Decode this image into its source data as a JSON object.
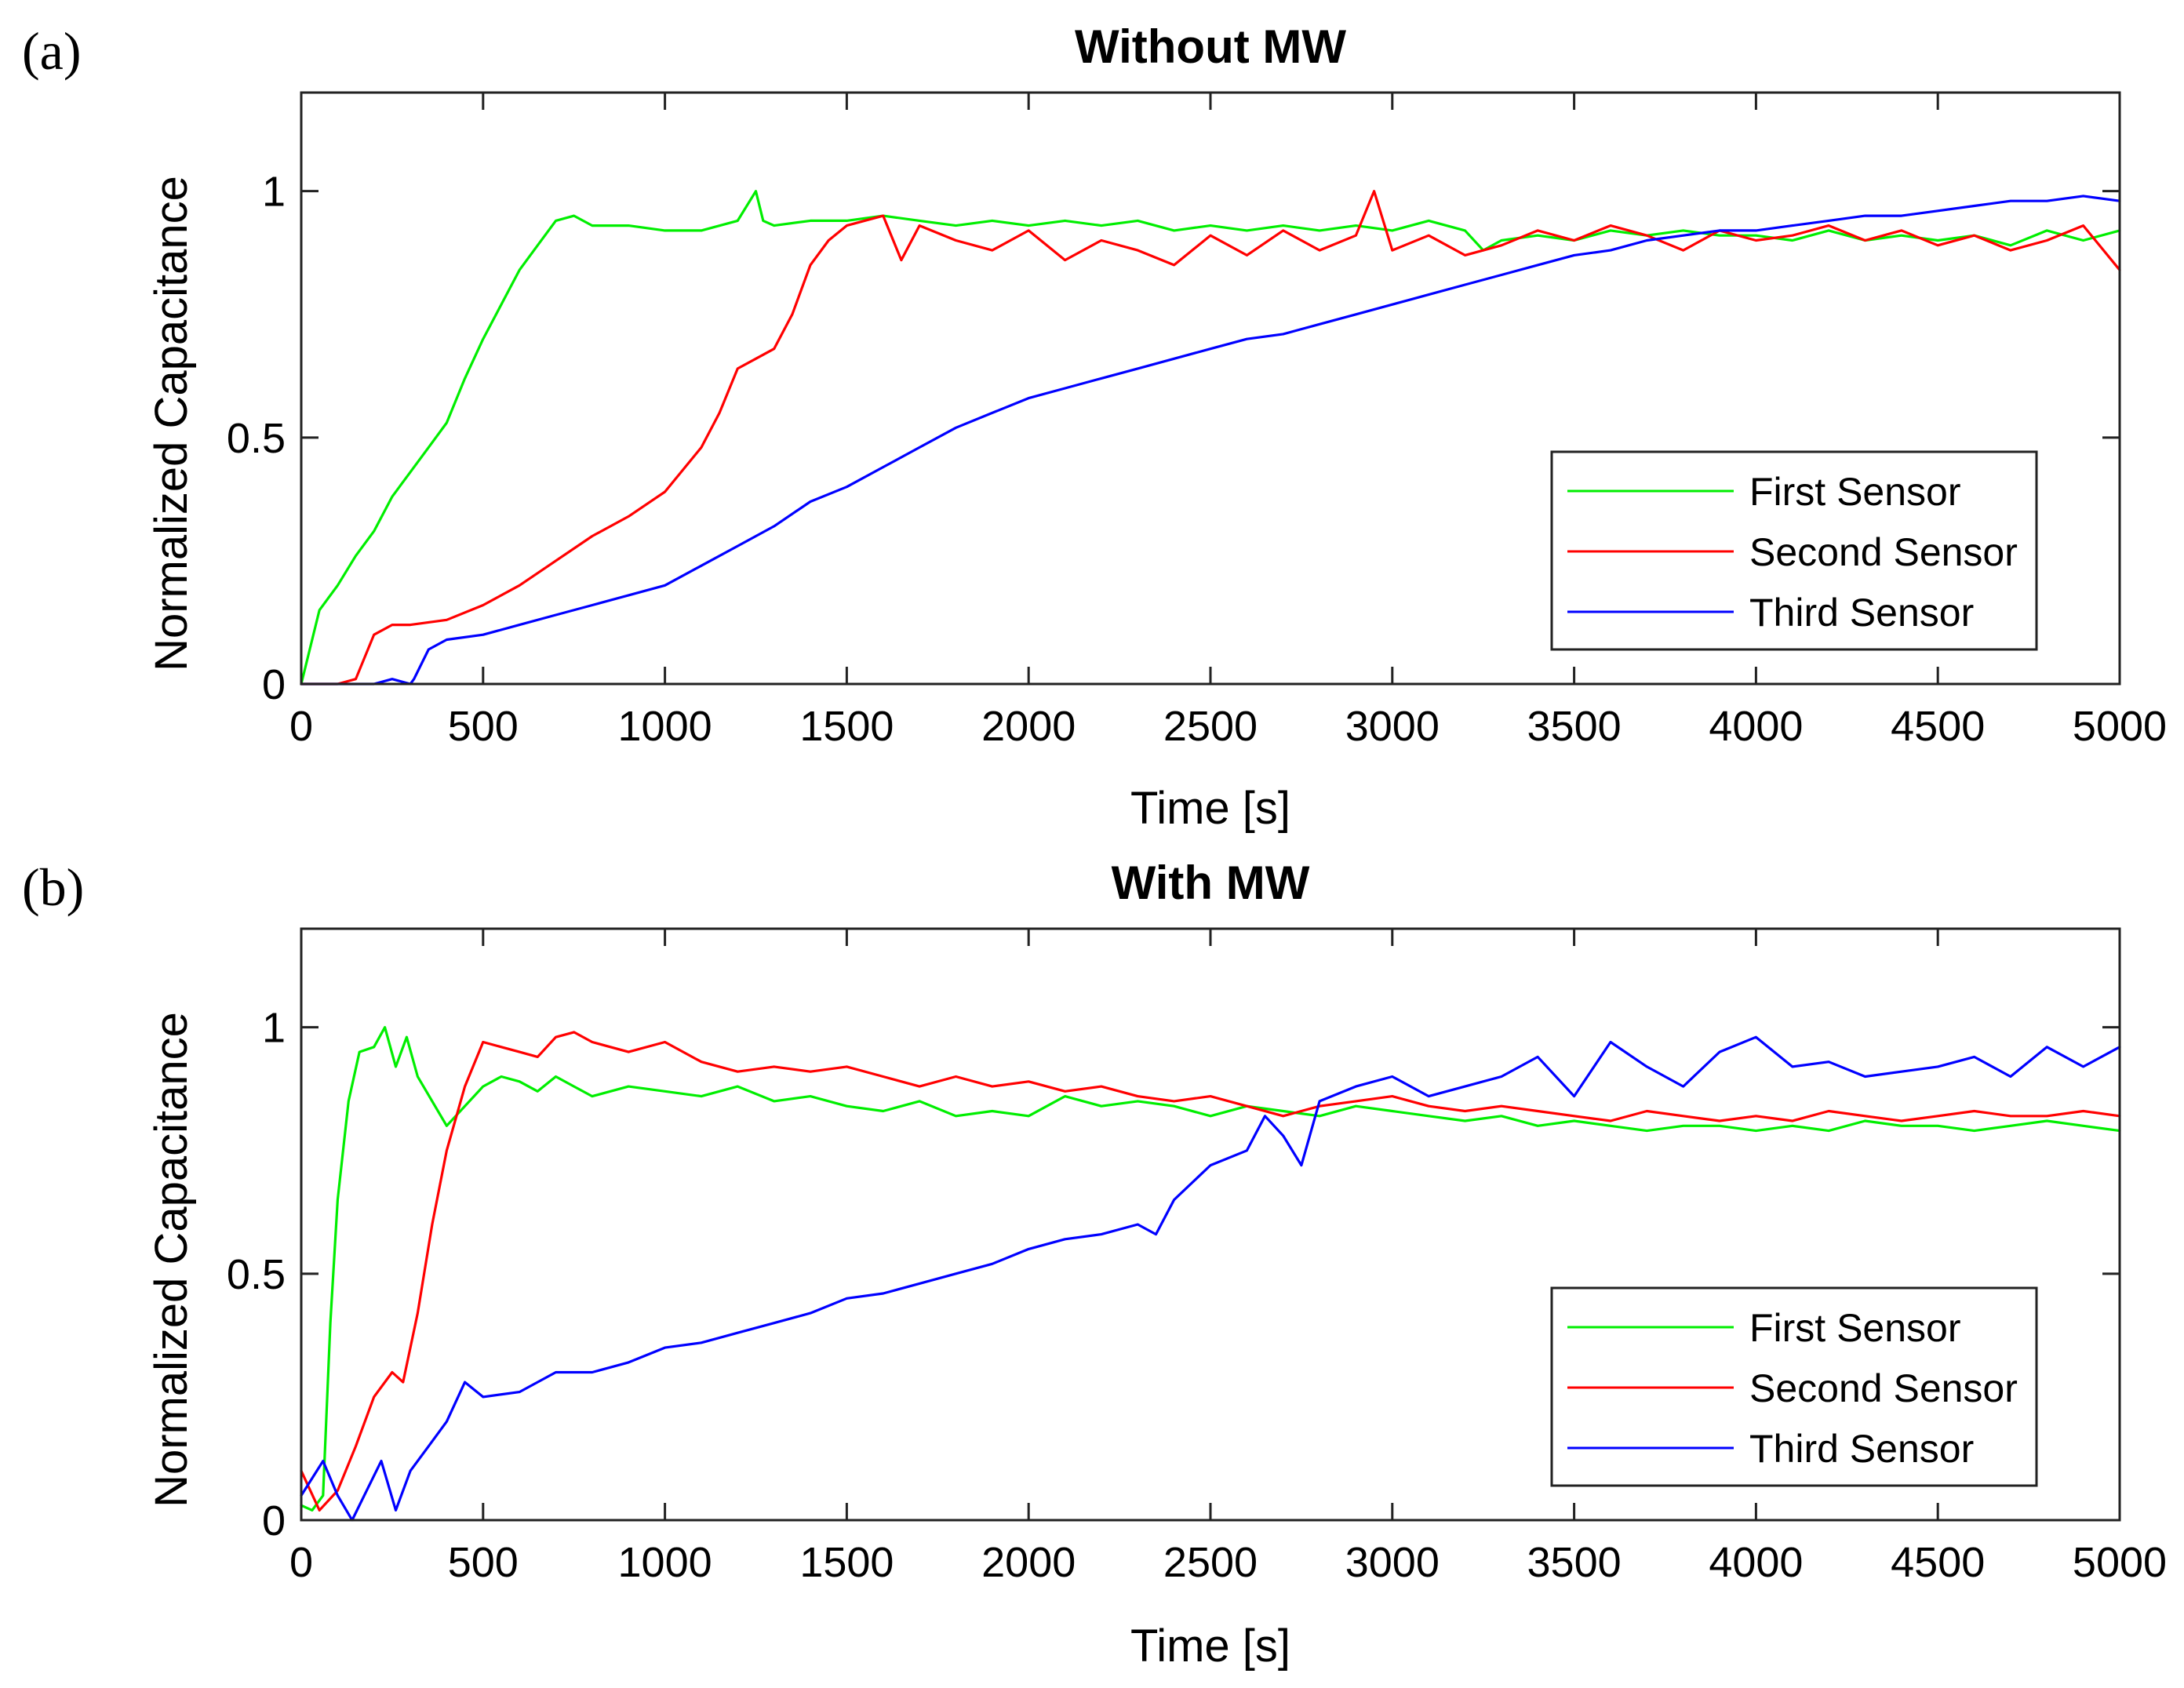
{
  "chart_data": [
    {
      "type": "line",
      "panel_label": "(a)",
      "title": "Without MW",
      "xlabel": "Time [s]",
      "ylabel": "Normalized Capacitance",
      "xlim": [
        0,
        5000
      ],
      "ylim": [
        0,
        1.2
      ],
      "xticks": [
        0,
        500,
        1000,
        1500,
        2000,
        2500,
        3000,
        3500,
        4000,
        4500,
        5000
      ],
      "yticks": [
        0,
        0.5,
        1
      ],
      "ytick_labels": [
        "0",
        "0.5",
        "1"
      ],
      "grid": false,
      "legend_position": "lower-right",
      "series": [
        {
          "name": "First Sensor",
          "color": "#00ee00",
          "x": [
            0,
            50,
            100,
            150,
            200,
            250,
            300,
            350,
            400,
            450,
            500,
            550,
            600,
            650,
            700,
            750,
            800,
            900,
            1000,
            1100,
            1200,
            1250,
            1270,
            1300,
            1400,
            1500,
            1600,
            1700,
            1800,
            1900,
            2000,
            2100,
            2200,
            2300,
            2400,
            2500,
            2600,
            2700,
            2800,
            2900,
            3000,
            3100,
            3200,
            3250,
            3300,
            3400,
            3500,
            3600,
            3700,
            3800,
            3900,
            4000,
            4100,
            4200,
            4300,
            4400,
            4500,
            4600,
            4700,
            4800,
            4900,
            5000
          ],
          "y": [
            0,
            0.15,
            0.2,
            0.26,
            0.31,
            0.38,
            0.43,
            0.48,
            0.53,
            0.62,
            0.7,
            0.77,
            0.84,
            0.89,
            0.94,
            0.95,
            0.93,
            0.93,
            0.92,
            0.92,
            0.94,
            1.0,
            0.94,
            0.93,
            0.94,
            0.94,
            0.95,
            0.94,
            0.93,
            0.94,
            0.93,
            0.94,
            0.93,
            0.94,
            0.92,
            0.93,
            0.92,
            0.93,
            0.92,
            0.93,
            0.92,
            0.94,
            0.92,
            0.88,
            0.9,
            0.91,
            0.9,
            0.92,
            0.91,
            0.92,
            0.91,
            0.91,
            0.9,
            0.92,
            0.9,
            0.91,
            0.9,
            0.91,
            0.89,
            0.92,
            0.9,
            0.92
          ]
        },
        {
          "name": "Second Sensor",
          "color": "#ff0000",
          "x": [
            0,
            100,
            150,
            200,
            250,
            300,
            400,
            500,
            600,
            700,
            800,
            900,
            1000,
            1100,
            1150,
            1200,
            1250,
            1300,
            1350,
            1400,
            1450,
            1500,
            1600,
            1650,
            1700,
            1800,
            1900,
            2000,
            2100,
            2200,
            2300,
            2400,
            2500,
            2600,
            2700,
            2800,
            2900,
            2950,
            3000,
            3100,
            3200,
            3300,
            3400,
            3500,
            3600,
            3700,
            3800,
            3900,
            4000,
            4100,
            4200,
            4300,
            4400,
            4500,
            4600,
            4700,
            4800,
            4900,
            5000
          ],
          "y": [
            0,
            0,
            0.01,
            0.1,
            0.12,
            0.12,
            0.13,
            0.16,
            0.2,
            0.25,
            0.3,
            0.34,
            0.39,
            0.48,
            0.55,
            0.64,
            0.66,
            0.68,
            0.75,
            0.85,
            0.9,
            0.93,
            0.95,
            0.86,
            0.93,
            0.9,
            0.88,
            0.92,
            0.86,
            0.9,
            0.88,
            0.85,
            0.91,
            0.87,
            0.92,
            0.88,
            0.91,
            1.0,
            0.88,
            0.91,
            0.87,
            0.89,
            0.92,
            0.9,
            0.93,
            0.91,
            0.88,
            0.92,
            0.9,
            0.91,
            0.93,
            0.9,
            0.92,
            0.89,
            0.91,
            0.88,
            0.9,
            0.93,
            0.84
          ]
        },
        {
          "name": "Third Sensor",
          "color": "#0000ff",
          "x": [
            0,
            200,
            250,
            300,
            310,
            350,
            400,
            500,
            600,
            700,
            800,
            900,
            1000,
            1100,
            1200,
            1300,
            1400,
            1500,
            1600,
            1700,
            1800,
            1900,
            2000,
            2100,
            2200,
            2300,
            2400,
            2500,
            2600,
            2700,
            2800,
            2900,
            3000,
            3100,
            3200,
            3300,
            3400,
            3500,
            3600,
            3700,
            3800,
            3900,
            4000,
            4100,
            4200,
            4300,
            4400,
            4500,
            4600,
            4700,
            4800,
            4900,
            5000
          ],
          "y": [
            0,
            0,
            0.01,
            0,
            0.01,
            0.07,
            0.09,
            0.1,
            0.12,
            0.14,
            0.16,
            0.18,
            0.2,
            0.24,
            0.28,
            0.32,
            0.37,
            0.4,
            0.44,
            0.48,
            0.52,
            0.55,
            0.58,
            0.6,
            0.62,
            0.64,
            0.66,
            0.68,
            0.7,
            0.71,
            0.73,
            0.75,
            0.77,
            0.79,
            0.81,
            0.83,
            0.85,
            0.87,
            0.88,
            0.9,
            0.91,
            0.92,
            0.92,
            0.93,
            0.94,
            0.95,
            0.95,
            0.96,
            0.97,
            0.98,
            0.98,
            0.99,
            0.98
          ]
        }
      ]
    },
    {
      "type": "line",
      "panel_label": "(b)",
      "title": "With MW",
      "xlabel": "Time [s]",
      "ylabel": "Normalized Capacitance",
      "xlim": [
        0,
        5000
      ],
      "ylim": [
        0,
        1.2
      ],
      "xticks": [
        0,
        500,
        1000,
        1500,
        2000,
        2500,
        3000,
        3500,
        4000,
        4500,
        5000
      ],
      "yticks": [
        0,
        0.5,
        1
      ],
      "ytick_labels": [
        "0",
        "0.5",
        "1"
      ],
      "grid": false,
      "legend_position": "lower-right",
      "series": [
        {
          "name": "First Sensor",
          "color": "#00ee00",
          "x": [
            0,
            30,
            60,
            80,
            100,
            130,
            160,
            200,
            230,
            260,
            290,
            320,
            360,
            400,
            450,
            500,
            550,
            600,
            650,
            700,
            750,
            800,
            900,
            1000,
            1100,
            1200,
            1300,
            1400,
            1500,
            1600,
            1700,
            1800,
            1900,
            2000,
            2100,
            2200,
            2300,
            2400,
            2500,
            2600,
            2700,
            2800,
            2900,
            3000,
            3100,
            3200,
            3300,
            3400,
            3500,
            3600,
            3700,
            3800,
            3900,
            4000,
            4100,
            4200,
            4300,
            4400,
            4500,
            4600,
            4700,
            4800,
            4900,
            5000
          ],
          "y": [
            0.03,
            0.02,
            0.05,
            0.4,
            0.65,
            0.85,
            0.95,
            0.96,
            1.0,
            0.92,
            0.98,
            0.9,
            0.85,
            0.8,
            0.84,
            0.88,
            0.9,
            0.89,
            0.87,
            0.9,
            0.88,
            0.86,
            0.88,
            0.87,
            0.86,
            0.88,
            0.85,
            0.86,
            0.84,
            0.83,
            0.85,
            0.82,
            0.83,
            0.82,
            0.86,
            0.84,
            0.85,
            0.84,
            0.82,
            0.84,
            0.83,
            0.82,
            0.84,
            0.83,
            0.82,
            0.81,
            0.82,
            0.8,
            0.81,
            0.8,
            0.79,
            0.8,
            0.8,
            0.79,
            0.8,
            0.79,
            0.81,
            0.8,
            0.8,
            0.79,
            0.8,
            0.81,
            0.8,
            0.79
          ]
        },
        {
          "name": "Second Sensor",
          "color": "#ff0000",
          "x": [
            0,
            50,
            100,
            150,
            200,
            250,
            280,
            320,
            360,
            400,
            450,
            500,
            550,
            600,
            650,
            700,
            750,
            800,
            900,
            1000,
            1100,
            1200,
            1300,
            1400,
            1500,
            1600,
            1700,
            1800,
            1900,
            2000,
            2100,
            2200,
            2300,
            2400,
            2500,
            2600,
            2700,
            2800,
            2900,
            3000,
            3100,
            3200,
            3300,
            3400,
            3500,
            3600,
            3700,
            3800,
            3900,
            4000,
            4100,
            4200,
            4300,
            4400,
            4500,
            4600,
            4700,
            4800,
            4900,
            5000
          ],
          "y": [
            0.1,
            0.02,
            0.06,
            0.15,
            0.25,
            0.3,
            0.28,
            0.42,
            0.6,
            0.75,
            0.88,
            0.97,
            0.96,
            0.95,
            0.94,
            0.98,
            0.99,
            0.97,
            0.95,
            0.97,
            0.93,
            0.91,
            0.92,
            0.91,
            0.92,
            0.9,
            0.88,
            0.9,
            0.88,
            0.89,
            0.87,
            0.88,
            0.86,
            0.85,
            0.86,
            0.84,
            0.82,
            0.84,
            0.85,
            0.86,
            0.84,
            0.83,
            0.84,
            0.83,
            0.82,
            0.81,
            0.83,
            0.82,
            0.81,
            0.82,
            0.81,
            0.83,
            0.82,
            0.81,
            0.82,
            0.83,
            0.82,
            0.82,
            0.83,
            0.82
          ]
        },
        {
          "name": "Third Sensor",
          "color": "#0000ff",
          "x": [
            0,
            60,
            100,
            140,
            180,
            220,
            260,
            300,
            350,
            400,
            450,
            500,
            600,
            700,
            800,
            900,
            1000,
            1100,
            1200,
            1300,
            1400,
            1500,
            1600,
            1700,
            1800,
            1900,
            2000,
            2100,
            2200,
            2300,
            2350,
            2400,
            2500,
            2600,
            2650,
            2700,
            2750,
            2800,
            2900,
            3000,
            3100,
            3200,
            3300,
            3400,
            3500,
            3600,
            3700,
            3800,
            3900,
            4000,
            4100,
            4200,
            4300,
            4400,
            4500,
            4600,
            4700,
            4800,
            4900,
            5000
          ],
          "y": [
            0.05,
            0.12,
            0.05,
            0.0,
            0.06,
            0.12,
            0.02,
            0.1,
            0.15,
            0.2,
            0.28,
            0.25,
            0.26,
            0.3,
            0.3,
            0.32,
            0.35,
            0.36,
            0.38,
            0.4,
            0.42,
            0.45,
            0.46,
            0.48,
            0.5,
            0.52,
            0.55,
            0.57,
            0.58,
            0.6,
            0.58,
            0.65,
            0.72,
            0.75,
            0.82,
            0.78,
            0.72,
            0.85,
            0.88,
            0.9,
            0.86,
            0.88,
            0.9,
            0.94,
            0.86,
            0.97,
            0.92,
            0.88,
            0.95,
            0.98,
            0.92,
            0.93,
            0.9,
            0.91,
            0.92,
            0.94,
            0.9,
            0.96,
            0.92,
            0.96
          ]
        }
      ]
    }
  ]
}
